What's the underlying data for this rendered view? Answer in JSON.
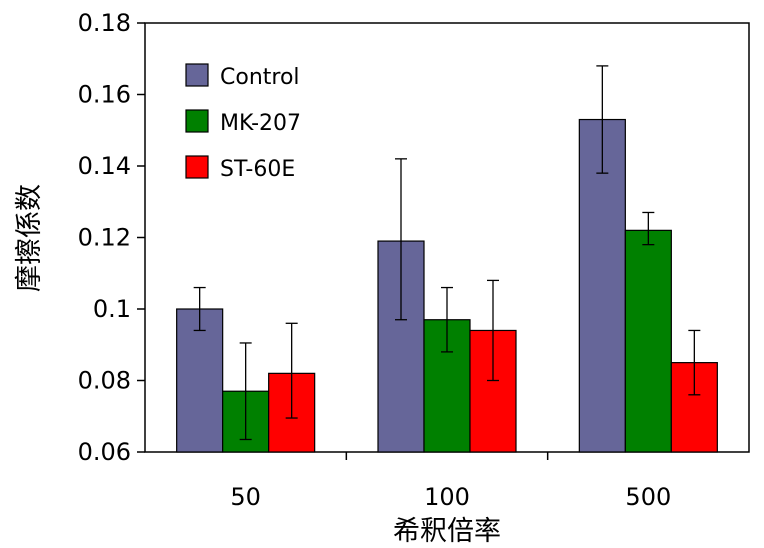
{
  "chart_data": {
    "type": "bar",
    "xlabel": "希釈倍率",
    "ylabel": "摩擦係数",
    "categories": [
      "50",
      "100",
      "500"
    ],
    "ylim": [
      0.06,
      0.18
    ],
    "y_ticks": [
      "0.06",
      "0.08",
      "0.1",
      "0.12",
      "0.14",
      "0.16",
      "0.18"
    ],
    "y_tick_values": [
      0.06,
      0.08,
      0.1,
      0.12,
      0.14,
      0.16,
      0.18
    ],
    "grid": false,
    "legend_position": "top-left",
    "series": [
      {
        "name": "Control",
        "color": "#666699",
        "values": [
          0.1,
          0.119,
          0.153
        ],
        "err_low": [
          0.094,
          0.097,
          0.138
        ],
        "err_high": [
          0.106,
          0.142,
          0.168
        ]
      },
      {
        "name": "MK-207",
        "color": "#008000",
        "values": [
          0.077,
          0.097,
          0.122
        ],
        "err_low": [
          0.0635,
          0.088,
          0.118
        ],
        "err_high": [
          0.0905,
          0.106,
          0.127
        ]
      },
      {
        "name": "ST-60E",
        "color": "#ff0000",
        "values": [
          0.082,
          0.094,
          0.085
        ],
        "err_low": [
          0.0695,
          0.08,
          0.076
        ],
        "err_high": [
          0.096,
          0.108,
          0.094
        ]
      }
    ]
  }
}
